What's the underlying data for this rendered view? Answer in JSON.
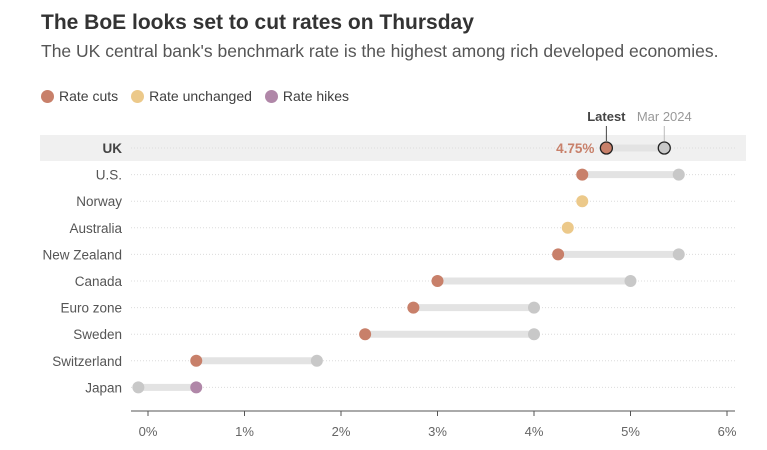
{
  "header": {
    "title": "The BoE looks set to cut rates on Thursday",
    "subtitle": "The UK central bank's benchmark rate is the highest among rich developed economies."
  },
  "legend": [
    {
      "label": "Rate cuts",
      "color": "#c8806a"
    },
    {
      "label": "Rate unchanged",
      "color": "#ecc98a"
    },
    {
      "label": "Rate hikes",
      "color": "#b087a8"
    }
  ],
  "chart_data": {
    "type": "dot-range",
    "annotations": {
      "latest_label": "Latest",
      "previous_label": "Mar 2024",
      "uk_value_label": "4.75%"
    },
    "xlim": [
      -0.15,
      6
    ],
    "xticks": [
      0,
      1,
      2,
      3,
      4,
      5,
      6
    ],
    "xtick_labels": [
      "0%",
      "1%",
      "2%",
      "3%",
      "4%",
      "5%",
      "6%"
    ],
    "rows": [
      {
        "country": "UK",
        "latest": 4.75,
        "mar2024": 5.35,
        "change": "cut",
        "highlight": true
      },
      {
        "country": "U.S.",
        "latest": 4.5,
        "mar2024": 5.5,
        "change": "cut"
      },
      {
        "country": "Norway",
        "latest": 4.5,
        "mar2024": 4.5,
        "change": "unchanged"
      },
      {
        "country": "Australia",
        "latest": 4.35,
        "mar2024": 4.35,
        "change": "unchanged"
      },
      {
        "country": "New Zealand",
        "latest": 4.25,
        "mar2024": 5.5,
        "change": "cut"
      },
      {
        "country": "Canada",
        "latest": 3.0,
        "mar2024": 5.0,
        "change": "cut"
      },
      {
        "country": "Euro zone",
        "latest": 2.75,
        "mar2024": 4.0,
        "change": "cut"
      },
      {
        "country": "Sweden",
        "latest": 2.25,
        "mar2024": 4.0,
        "change": "cut"
      },
      {
        "country": "Switzerland",
        "latest": 0.5,
        "mar2024": 1.75,
        "change": "cut"
      },
      {
        "country": "Japan",
        "latest": 0.5,
        "mar2024": -0.1,
        "change": "hike"
      }
    ],
    "colors": {
      "cut": "#c8806a",
      "unchanged": "#ecc98a",
      "hike": "#b087a8",
      "previous": "#c8c8c8",
      "range_bar": "#e3e3e3",
      "uk_band": "#f0f0f0",
      "uk_value": "#c8806a"
    }
  }
}
